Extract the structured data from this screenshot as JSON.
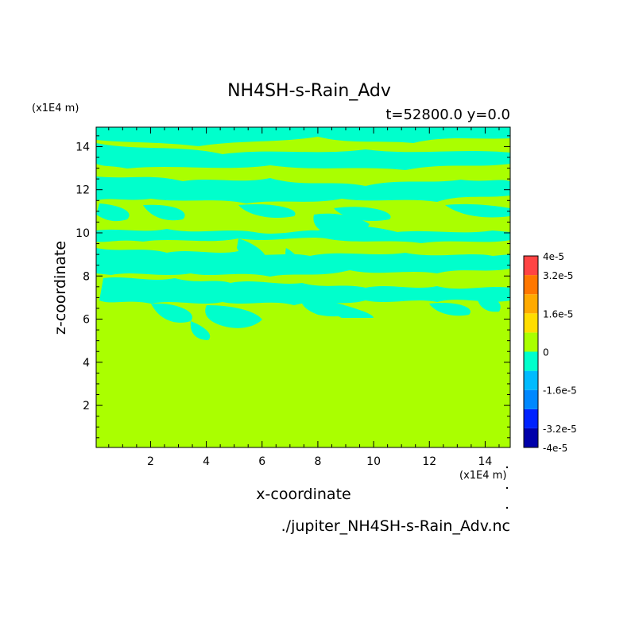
{
  "chart_data": {
    "type": "heatmap",
    "title": "NH4SH-s-Rain_Adv",
    "subtitle": "t=52800.0 y=0.0",
    "xlabel": "x-coordinate",
    "ylabel": "z-coordinate",
    "x_unit": "(x1E4 m)",
    "y_unit": "(x1E4 m)",
    "source_file": "./jupiter_NH4SH-s-Rain_Adv.nc",
    "xlim": [
      0.05,
      14.9
    ],
    "ylim": [
      0.05,
      14.9
    ],
    "x_ticks": [
      "2",
      "4",
      "6",
      "8",
      "10",
      "12",
      "14"
    ],
    "y_ticks": [
      "2",
      "4",
      "6",
      "8",
      "10",
      "12",
      "14"
    ],
    "x_tick_values": [
      2,
      4,
      6,
      8,
      10,
      12,
      14
    ],
    "y_tick_values": [
      2,
      4,
      6,
      8,
      10,
      12,
      14
    ],
    "field_summary": {
      "background_value_band": "0 to 8e-6",
      "background_color": "#aaff00",
      "patch_value_band": "-8e-6 to 0",
      "patch_color": "#00ffcc",
      "patches_present_above_z": 5.0
    },
    "colorbar": {
      "levels": [
        -4e-05,
        -3.2e-05,
        -2.4e-05,
        -1.6e-05,
        -8e-06,
        0,
        8e-06,
        1.6e-05,
        2.4e-05,
        3.2e-05,
        4e-05
      ],
      "colors": [
        "#0000aa",
        "#0022ff",
        "#0088ff",
        "#00bbff",
        "#00ffcc",
        "#aaff00",
        "#ffdd00",
        "#ffaa00",
        "#ff7700",
        "#ff4444"
      ],
      "labels": [
        "4e-5",
        "3.2e-5",
        "1.6e-5",
        "0",
        "-1.6e-5",
        "-3.2e-5",
        "-4e-5"
      ],
      "label_values": [
        4e-05,
        3.2e-05,
        1.6e-05,
        0,
        -1.6e-05,
        -3.2e-05,
        -4e-05
      ]
    }
  }
}
